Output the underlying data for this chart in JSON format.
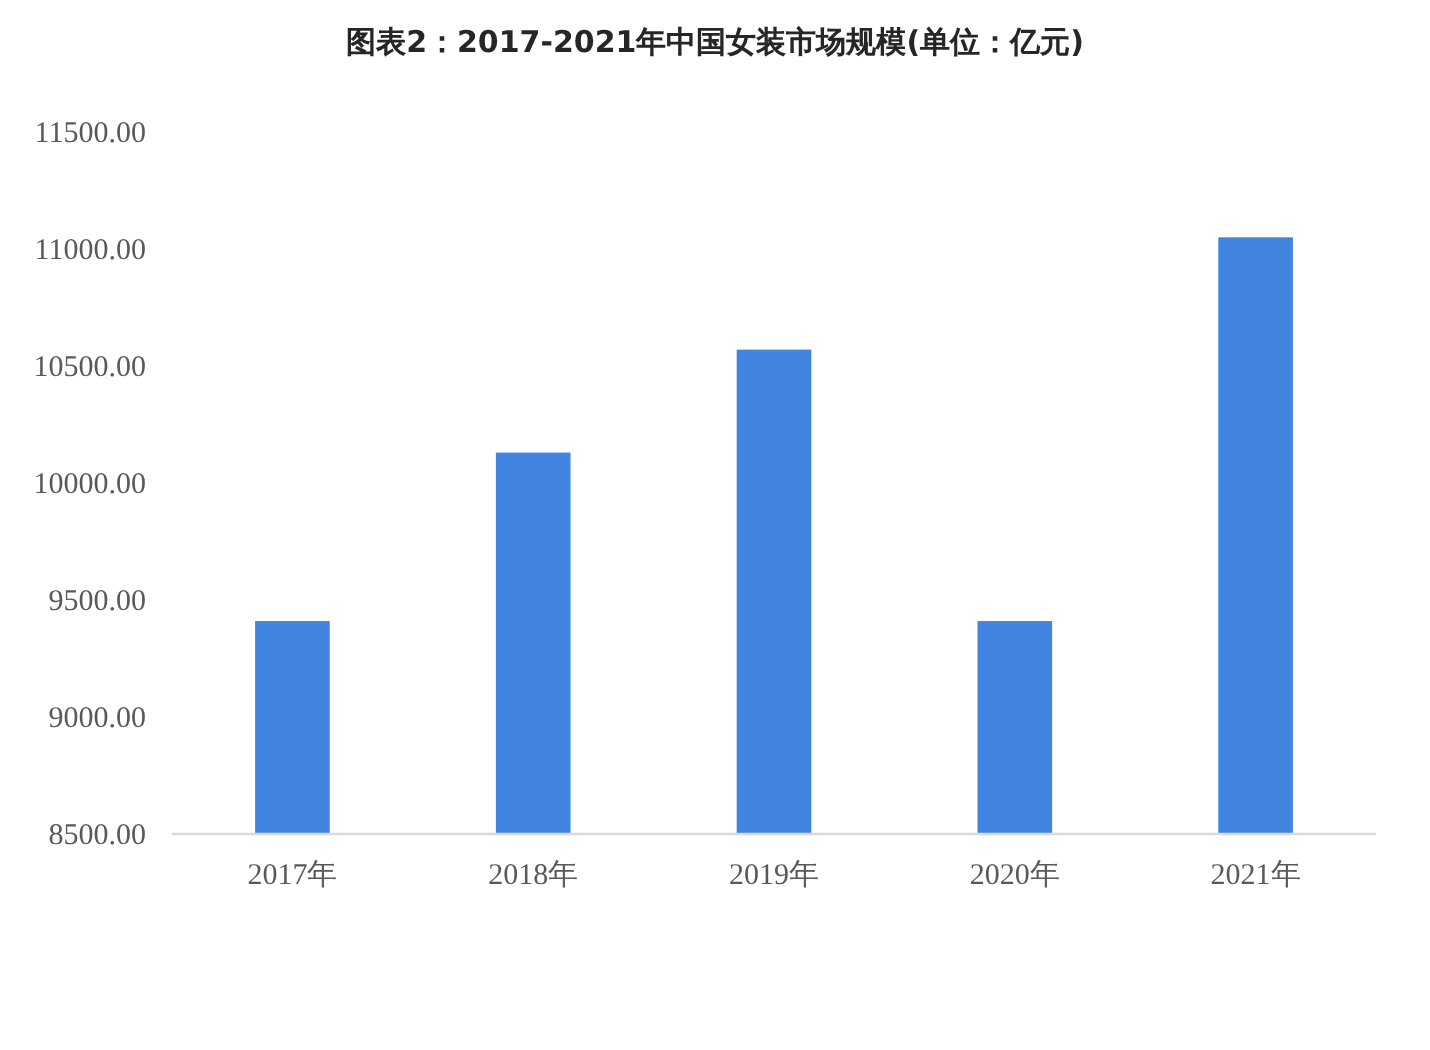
{
  "chart_data": {
    "type": "bar",
    "title": "图表2：2017-2021年中国女装市场规模(单位：亿元)",
    "categories": [
      "2017年",
      "2018年",
      "2019年",
      "2020年",
      "2021年"
    ],
    "values": [
      9410,
      10130,
      10570,
      9410,
      11050
    ],
    "color": "#4285e1",
    "ylim": [
      8500,
      11500
    ],
    "yticks": [
      {
        "value": 8500,
        "label": "8500.00"
      },
      {
        "value": 9000,
        "label": "9000.00"
      },
      {
        "value": 9500,
        "label": "9500.00"
      },
      {
        "value": 10000,
        "label": "10000.00"
      },
      {
        "value": 10500,
        "label": "10500.00"
      },
      {
        "value": 11000,
        "label": "11000.00"
      },
      {
        "value": 11500,
        "label": "11500.00"
      }
    ]
  }
}
